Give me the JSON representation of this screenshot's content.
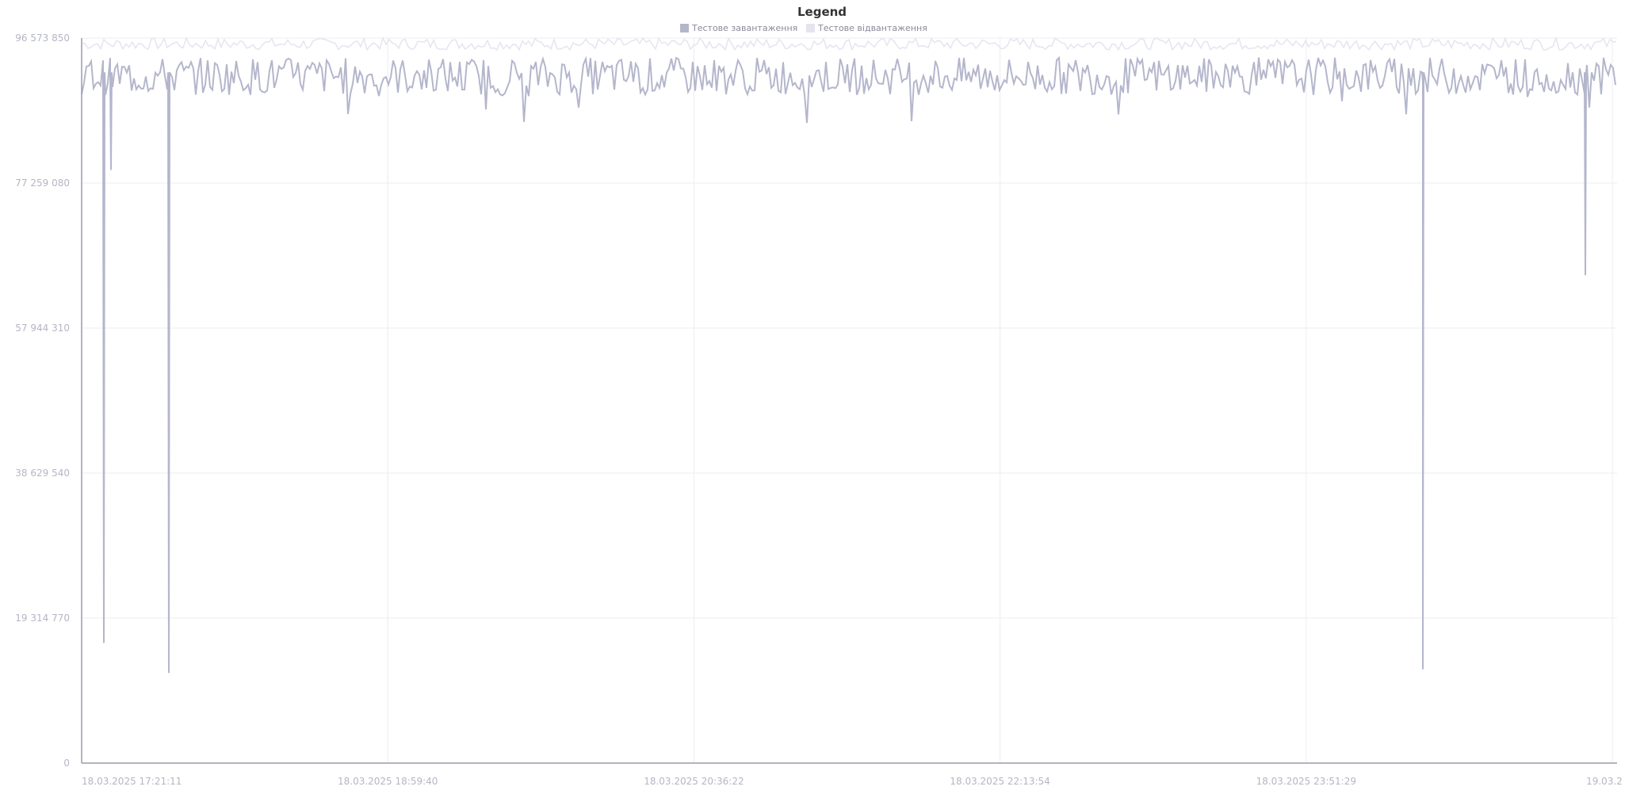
{
  "legend": {
    "title": "Legend",
    "items": [
      {
        "label": "Тестове завантаження",
        "color": "#b4b6cc"
      },
      {
        "label": "Тестове відвантаження",
        "color": "#e4e5ee"
      }
    ]
  },
  "chart_data": {
    "type": "line",
    "title": "Legend",
    "xlabel": "",
    "ylabel": "",
    "ylim": [
      0,
      96573850
    ],
    "y_ticks": [
      "0",
      "19 314 770",
      "38 629 540",
      "57 944 310",
      "77 259 080",
      "96 573 850"
    ],
    "y_tick_values": [
      0,
      19314770,
      38629540,
      57944310,
      77259080,
      96573850
    ],
    "x_ticks": [
      "18.03.2025 17:21:11",
      "18.03.2025 18:59:40",
      "18.03.2025 20:36:22",
      "18.03.2025 22:13:54",
      "18.03.2025 23:51:29",
      "19.03.2"
    ],
    "grid": true,
    "legend_position": "top-center",
    "series": [
      {
        "name": "Тестове завантаження",
        "color": "#b4b6cc",
        "description_values": {
          "baseline_range": [
            89000000,
            94000000
          ],
          "dips": [
            {
              "approx_time": "18.03.2025 17:28",
              "value": 16000000
            },
            {
              "approx_time": "18.03.2025 17:29",
              "value": 79000000
            },
            {
              "approx_time": "18.03.2025 17:50",
              "value": 12000000
            },
            {
              "approx_time": "19.03.2025 00:04",
              "value": 12500000
            },
            {
              "approx_time": "19.03.2025 00:55",
              "value": 65000000
            }
          ]
        }
      },
      {
        "name": "Тестове відвантаження",
        "color": "#e4e5ee",
        "description_values": {
          "baseline_range": [
            95000000,
            96573850
          ]
        }
      }
    ]
  }
}
